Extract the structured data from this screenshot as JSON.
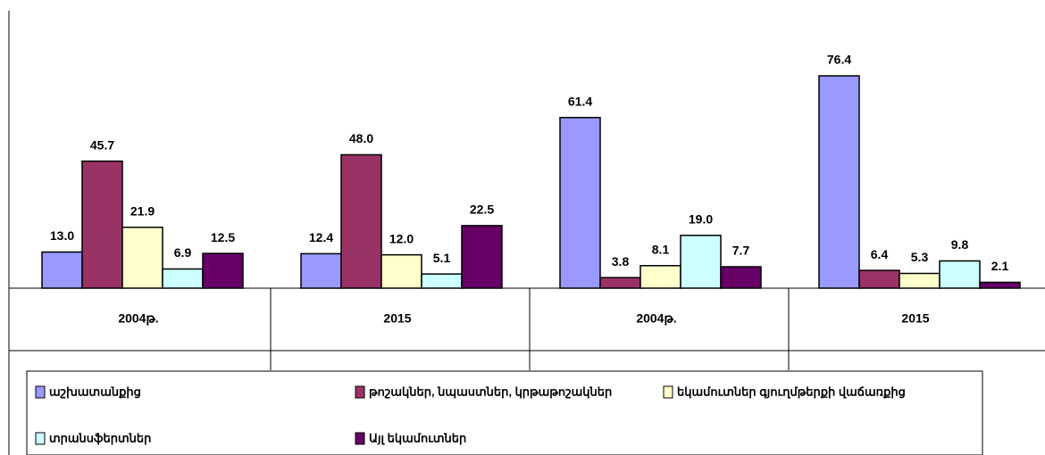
{
  "chart_data": {
    "type": "bar",
    "categories": [
      "2004թ.",
      "2015",
      "2004թ.",
      "2015"
    ],
    "series": [
      {
        "name": "աշխատանքից",
        "color": "#9999ff",
        "values": [
          13.0,
          12.4,
          61.4,
          76.4
        ],
        "value_labels": [
          "13.0",
          "12.4",
          "61.4",
          "76.4"
        ]
      },
      {
        "name": "թոշակներ, նպաստներ, կրթաթոշակներ",
        "color": "#993366",
        "values": [
          45.7,
          48.0,
          3.8,
          6.4
        ],
        "value_labels": [
          "45.7",
          "48.0",
          "3.8",
          "6.4"
        ]
      },
      {
        "name": "եկամուտներ գյուղմթերքի վաճառքից",
        "color": "#ffffcc",
        "values": [
          21.9,
          12.0,
          8.1,
          5.3
        ],
        "value_labels": [
          "21.9",
          "12.0",
          "8.1",
          "5.3"
        ]
      },
      {
        "name": "տրանսֆերտներ",
        "color": "#ccffff",
        "values": [
          6.9,
          5.1,
          19.0,
          9.8
        ],
        "value_labels": [
          "6.9",
          "5.1",
          "19.0",
          "9.8"
        ]
      },
      {
        "name": "Այլ եկամուտներ",
        "color": "#660066",
        "values": [
          12.5,
          22.5,
          7.7,
          2.1
        ],
        "value_labels": [
          "12.5",
          "22.5",
          "7.7",
          "2.1"
        ]
      }
    ]
  }
}
